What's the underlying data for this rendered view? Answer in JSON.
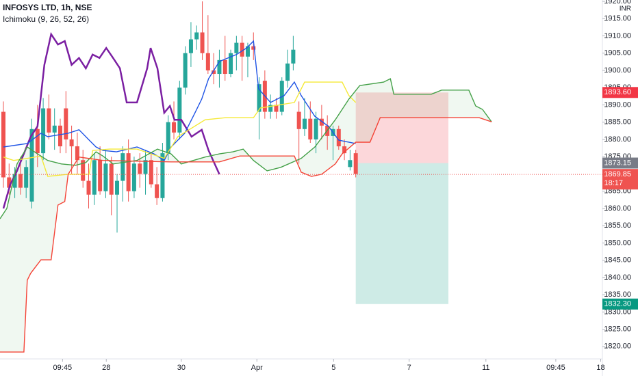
{
  "chart_data": {
    "type": "candlestick",
    "title": "INFOSYS LTD, 1h, NSE",
    "subtitle": "Ichimoku (9, 26, 52, 26)",
    "currency": "INR",
    "up_color": "#26a69a",
    "down_color": "#ef5350",
    "x": [
      0,
      1,
      2,
      3,
      4,
      5,
      6,
      7,
      8,
      9,
      10,
      11,
      12,
      13,
      14,
      15,
      16,
      17,
      18,
      19,
      20,
      21,
      22,
      23,
      24,
      25,
      26,
      27,
      28,
      29,
      30,
      31,
      32,
      33,
      34,
      35,
      36,
      37,
      38,
      39,
      40,
      41,
      42,
      43,
      44,
      45,
      46,
      47,
      48,
      49,
      50,
      51,
      52,
      53,
      54,
      55,
      56,
      57,
      58,
      59,
      60,
      61,
      62
    ],
    "ohlc": [
      [
        1888,
        1891,
        1866,
        1869
      ],
      [
        1869,
        1873,
        1864,
        1866
      ],
      [
        1866,
        1872,
        1863,
        1870
      ],
      [
        1870,
        1875,
        1864,
        1866
      ],
      [
        1866,
        1874,
        1863,
        1872
      ],
      [
        1862,
        1886,
        1860,
        1883
      ],
      [
        1883,
        1890,
        1872,
        1876
      ],
      [
        1876,
        1892,
        1874,
        1889
      ],
      [
        1889,
        1893,
        1880,
        1882
      ],
      [
        1882,
        1889,
        1877,
        1884
      ],
      [
        1884,
        1886,
        1876,
        1878
      ],
      [
        1889,
        1894,
        1876,
        1880
      ],
      [
        1880,
        1884,
        1870,
        1878
      ],
      [
        1878,
        1882,
        1870,
        1874
      ],
      [
        1874,
        1877,
        1866,
        1868
      ],
      [
        1868,
        1873,
        1860,
        1864
      ],
      [
        1864,
        1876,
        1861,
        1874
      ],
      [
        1874,
        1878,
        1864,
        1865
      ],
      [
        1865,
        1877,
        1863,
        1873
      ],
      [
        1873,
        1875,
        1858,
        1864
      ],
      [
        1864,
        1870,
        1853,
        1868
      ],
      [
        1868,
        1878,
        1862,
        1876
      ],
      [
        1876,
        1880,
        1862,
        1865
      ],
      [
        1865,
        1875,
        1863,
        1873
      ],
      [
        1873,
        1876,
        1866,
        1870
      ],
      [
        1870,
        1877,
        1864,
        1874
      ],
      [
        1874,
        1876,
        1866,
        1867
      ],
      [
        1867,
        1872,
        1861,
        1863
      ],
      [
        1863,
        1879,
        1862,
        1876
      ],
      [
        1876,
        1887,
        1874,
        1885
      ],
      [
        1885,
        1891,
        1880,
        1882
      ],
      [
        1882,
        1897,
        1880,
        1895
      ],
      [
        1895,
        1907,
        1893,
        1905
      ],
      [
        1905,
        1914,
        1901,
        1909
      ],
      [
        1909,
        1913,
        1906,
        1911
      ],
      [
        1911,
        1920,
        1903,
        1905
      ],
      [
        1905,
        1916,
        1899,
        1900
      ],
      [
        1900,
        1905,
        1896,
        1899
      ],
      [
        1899,
        1906,
        1895,
        1903
      ],
      [
        1903,
        1910,
        1897,
        1899
      ],
      [
        1899,
        1906,
        1898,
        1905
      ],
      [
        1905,
        1910,
        1900,
        1908
      ],
      [
        1908,
        1910,
        1897,
        1904
      ],
      [
        1904,
        1908,
        1898,
        1907
      ],
      [
        1907,
        1911,
        1903,
        1906
      ],
      [
        1888,
        1898,
        1880,
        1896
      ],
      [
        1897,
        1900,
        1886,
        1888
      ],
      [
        1888,
        1893,
        1886,
        1890
      ],
      [
        1890,
        1892,
        1886,
        1888
      ],
      [
        1888,
        1898,
        1887,
        1897
      ],
      [
        1897,
        1906,
        1895,
        1902
      ],
      [
        1902,
        1910,
        1900,
        1906
      ],
      [
        1888,
        1891,
        1873,
        1883
      ],
      [
        1883,
        1892,
        1881,
        1886
      ],
      [
        1886,
        1891,
        1879,
        1880
      ],
      [
        1880,
        1888,
        1876,
        1886
      ],
      [
        1886,
        1890,
        1880,
        1884
      ],
      [
        1884,
        1887,
        1877,
        1881
      ],
      [
        1881,
        1884,
        1874,
        1883
      ],
      [
        1883,
        1884,
        1877,
        1878
      ],
      [
        1878,
        1880,
        1874,
        1876
      ],
      [
        1872,
        1877,
        1871,
        1874
      ],
      [
        1876,
        1877,
        1869,
        1870
      ]
    ],
    "lines": [
      {
        "color": "#7b1fa2",
        "x": [
          0,
          1.2,
          2.4,
          4.8,
          6,
          7.2,
          8.4,
          9.6,
          10.8,
          12,
          13.3,
          14.5,
          15.7,
          16.9,
          18.1,
          19.3,
          20.5,
          21.7,
          23.5,
          25.3,
          25.9,
          27.1,
          28.3,
          29.3,
          30.1,
          31.3,
          33.1,
          34.9,
          36.1,
          38
        ],
        "values": [
          1860.0,
          1866.9,
          1870.9,
          1880.8,
          1883.8,
          1901.6,
          1910.5,
          1907.5,
          1908.5,
          1901.6,
          1903.6,
          1900.6,
          1904.6,
          1903.6,
          1906.5,
          1903.6,
          1900.6,
          1890.7,
          1890.7,
          1900.6,
          1906.5,
          1900.6,
          1887.7,
          1889.7,
          1885.7,
          1885.7,
          1880.8,
          1882.8,
          1876.8,
          1869.9
        ]
      },
      {
        "color": "#1e53e5",
        "x": [
          0,
          4.2,
          6.6,
          7.8,
          11.4,
          13.3,
          15.1,
          16.3,
          17.5,
          19.9,
          23.5,
          26.5,
          28.3,
          29.5,
          30.7,
          31.9,
          33.7,
          34.9,
          36.1,
          38,
          41,
          42.8,
          44,
          44.9,
          47,
          49.4,
          51.2,
          52.4,
          54.8,
          57.2,
          59,
          62
        ],
        "values": [
          1877.8,
          1878.8,
          1881.8,
          1880.8,
          1881.8,
          1882.8,
          1879.8,
          1877.8,
          1876.8,
          1876.4,
          1877.8,
          1875.8,
          1873.9,
          1877.8,
          1879.8,
          1881.8,
          1887.7,
          1891.7,
          1897.6,
          1902.6,
          1904.6,
          1906.5,
          1908.5,
          1894.7,
          1890.7,
          1892.7,
          1896.6,
          1892.7,
          1886.7,
          1883.8,
          1879.8,
          1878.8
        ]
      },
      {
        "color": "#f5e936",
        "x": [
          0,
          1.8,
          4.2,
          6.6,
          7.8,
          11.4,
          15.1,
          15.7,
          18.7,
          23.5,
          28.3,
          30.7,
          35.5,
          39.2,
          44,
          45.2,
          51.2,
          53,
          59.6,
          60.8,
          62
        ],
        "values": [
          1874.9,
          1873.9,
          1874.5,
          1875.2,
          1869.3,
          1869.9,
          1869.9,
          1876.8,
          1877.2,
          1877.2,
          1874.5,
          1880.8,
          1885.7,
          1886.3,
          1886.3,
          1889.1,
          1890.7,
          1896.6,
          1896.6,
          1892.7,
          1890.7
        ]
      },
      {
        "color": "#43a047",
        "x": [
          -0.6,
          0.6,
          2.4,
          4.2,
          6,
          7.8,
          10.2,
          12.7,
          14.5,
          16.3,
          17.5,
          19.3,
          23.5,
          27.1,
          29.5,
          31.3,
          35.5,
          38,
          40.4,
          42.2,
          44,
          46.4,
          48.8,
          52.4,
          54.8,
          58.4,
          60.8,
          62.7,
          66.9,
          68.1,
          68.7,
          75.3,
          77.1,
          81.9,
          83.1,
          84.3,
          85.9
        ],
        "values": [
          1857.0,
          1860.0,
          1872.9,
          1877.8,
          1875.8,
          1873.9,
          1872.9,
          1872.5,
          1873.3,
          1876.4,
          1875.2,
          1872.9,
          1873.9,
          1877.2,
          1875.8,
          1872.9,
          1874.9,
          1875.8,
          1876.4,
          1877.2,
          1873.9,
          1870.9,
          1871.9,
          1874.5,
          1877.8,
          1885.7,
          1891.7,
          1895.6,
          1896.6,
          1897.6,
          1893.1,
          1893.1,
          1894.3,
          1894.3,
          1889.7,
          1888.7,
          1885.1
        ]
      },
      {
        "color": "#f44336",
        "x": [
          -0.6,
          3.6,
          4.2,
          4.8,
          6.6,
          8.4,
          9.6,
          10.8,
          11.4,
          13.3,
          17.5,
          29.5,
          38,
          41.6,
          51.2,
          52.4,
          54.2,
          56,
          58.4,
          59.6,
          62,
          64.5,
          66.3,
          83.7,
          85.9
        ],
        "values": [
          1818.4,
          1818.4,
          1839.2,
          1841.2,
          1845.1,
          1845.1,
          1861.0,
          1862.0,
          1869.9,
          1874.9,
          1873.9,
          1873.5,
          1873.5,
          1875.2,
          1875.2,
          1870.5,
          1869.3,
          1869.9,
          1872.9,
          1875.8,
          1879.2,
          1879.2,
          1886.3,
          1886.3,
          1885.1
        ]
      }
    ],
    "position": {
      "x": [
        62,
        78.3
      ],
      "entry": {
        "value": 1873.15,
        "label": "1873.15"
      },
      "stop": {
        "value": 1893.6,
        "label": "1893.60"
      },
      "target": {
        "value": 1832.3,
        "label": "1832.30"
      }
    },
    "last": {
      "value": 1869.85,
      "label": "1869.85"
    },
    "countdown": "18:17",
    "xlim": [
      -0.6,
      105.4
    ],
    "ylim": [
      1816.4,
      1920.4
    ],
    "xticks": [
      {
        "value": 10.4,
        "label": "09:45"
      },
      {
        "value": 18.1,
        "label": "28"
      },
      {
        "value": 31.3,
        "label": "30"
      },
      {
        "value": 44.6,
        "label": "Apr"
      },
      {
        "value": 58.1,
        "label": "5"
      },
      {
        "value": 71.4,
        "label": "7"
      },
      {
        "value": 84.9,
        "label": "11"
      },
      {
        "value": 97.2,
        "label": "09:45"
      },
      {
        "value": 105.1,
        "label": "18"
      }
    ],
    "yticks": [
      {
        "value": 1820,
        "label": "1820.00"
      },
      {
        "value": 1825,
        "label": "1825.00"
      },
      {
        "value": 1830,
        "label": "1830.00"
      },
      {
        "value": 1835,
        "label": "1835.00"
      },
      {
        "value": 1840,
        "label": "1840.00"
      },
      {
        "value": 1845,
        "label": "1845.00"
      },
      {
        "value": 1850,
        "label": "1850.00"
      },
      {
        "value": 1855,
        "label": "1855.00"
      },
      {
        "value": 1860,
        "label": "1860.00"
      },
      {
        "value": 1865,
        "label": "1865.00"
      },
      {
        "value": 1870,
        "label": "1870.00"
      },
      {
        "value": 1875,
        "label": "1875.00"
      },
      {
        "value": 1880,
        "label": "1880.00"
      },
      {
        "value": 1885,
        "label": "1885.00"
      },
      {
        "value": 1890,
        "label": "1890.00"
      },
      {
        "value": 1895,
        "label": "1895.00"
      },
      {
        "value": 1900,
        "label": "1900.00"
      },
      {
        "value": 1905,
        "label": "1905.00"
      },
      {
        "value": 1910,
        "label": "1910.00"
      },
      {
        "value": 1915,
        "label": "1915.00"
      },
      {
        "value": 1920,
        "label": "1920.00"
      }
    ]
  }
}
